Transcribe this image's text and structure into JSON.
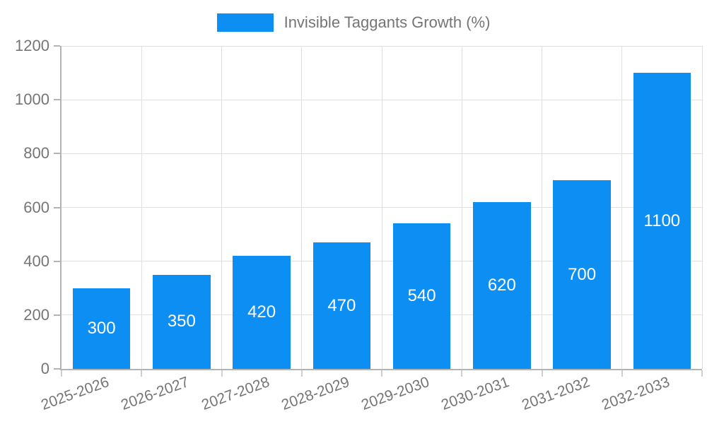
{
  "chart_data": {
    "type": "bar",
    "title": "Invisible Taggants Growth (%)",
    "categories": [
      "2025-2026",
      "2026-2027",
      "2027-2028",
      "2028-2029",
      "2029-2030",
      "2030-2031",
      "2031-2032",
      "2032-2033"
    ],
    "values": [
      300,
      350,
      420,
      470,
      540,
      620,
      700,
      1100
    ],
    "xlabel": "",
    "ylabel": "",
    "ylim": [
      0,
      1200
    ],
    "yticks": [
      0,
      200,
      400,
      600,
      800,
      1000,
      1200
    ],
    "grid": true,
    "legend_position": "top-center",
    "value_labels": "inside-bars-centered"
  },
  "colors": {
    "bar": "#0d8ef2",
    "axis_text": "#757575",
    "grid_line": "#e0e0e0",
    "axis_line": "#b3b3b3",
    "bar_label_text": "#ffffff",
    "background": "#ffffff"
  }
}
